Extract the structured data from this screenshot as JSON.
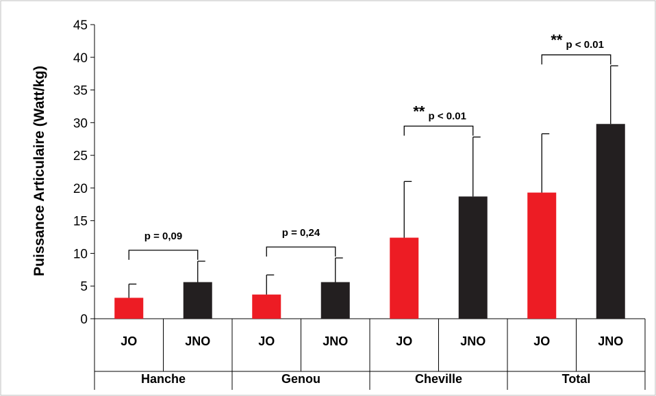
{
  "chart_data": {
    "type": "bar",
    "ylabel": "Puissance Articulaire (Watt/kg)",
    "ylim": [
      0,
      45
    ],
    "yticks": [
      0,
      5,
      10,
      15,
      20,
      25,
      30,
      35,
      40,
      45
    ],
    "grid": false,
    "groups": [
      "Hanche",
      "Genou",
      "Cheville",
      "Total"
    ],
    "series": [
      {
        "name": "JO",
        "color": "#ed1c24",
        "values": [
          3.2,
          3.7,
          12.4,
          19.3
        ],
        "errors": [
          2.1,
          3.0,
          8.6,
          9.0
        ]
      },
      {
        "name": "JNO",
        "color": "#231f20",
        "values": [
          5.6,
          5.6,
          18.7,
          29.8
        ],
        "errors": [
          3.2,
          3.7,
          9.1,
          8.9
        ]
      }
    ],
    "annotations": [
      {
        "group": 0,
        "stars": "",
        "text": "p = 0,09"
      },
      {
        "group": 1,
        "stars": "",
        "text": "p = 0,24"
      },
      {
        "group": 2,
        "stars": "**",
        "text": "p < 0.01"
      },
      {
        "group": 3,
        "stars": "**",
        "text": "p < 0.01"
      }
    ]
  }
}
